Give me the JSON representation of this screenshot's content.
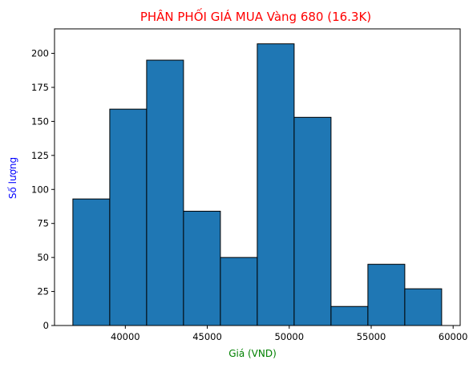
{
  "chart_data": {
    "type": "bar",
    "title": "PHÂN PHỐI GIÁ MUA Vàng 680 (16.3K)",
    "xlabel": "Giá (VND)",
    "ylabel": "Số lượng",
    "bins": [
      {
        "start": 36800,
        "end": 39050,
        "value": 93
      },
      {
        "start": 39050,
        "end": 41300,
        "value": 159
      },
      {
        "start": 41300,
        "end": 43550,
        "value": 195
      },
      {
        "start": 43550,
        "end": 45800,
        "value": 84
      },
      {
        "start": 45800,
        "end": 48050,
        "value": 50
      },
      {
        "start": 48050,
        "end": 50300,
        "value": 207
      },
      {
        "start": 50300,
        "end": 52550,
        "value": 153
      },
      {
        "start": 52550,
        "end": 54800,
        "value": 14
      },
      {
        "start": 54800,
        "end": 57050,
        "value": 45
      },
      {
        "start": 57050,
        "end": 59300,
        "value": 27
      }
    ],
    "xlim": [
      35680,
      60430
    ],
    "ylim": [
      0,
      218
    ],
    "xticks": [
      "40000",
      "45000",
      "50000",
      "55000",
      "60000"
    ],
    "yticks": [
      "0",
      "25",
      "50",
      "75",
      "100",
      "125",
      "150",
      "175",
      "200"
    ],
    "grid": false,
    "colors": {
      "bar_fill": "#1f77b4",
      "bar_edge": "#000000",
      "title": "#ff0000",
      "xlabel": "#008000",
      "ylabel": "#0000ff"
    }
  }
}
